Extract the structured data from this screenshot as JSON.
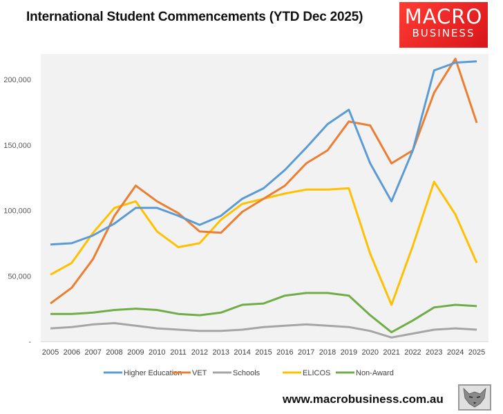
{
  "header": {
    "title": "International Student Commencements (YTD Dec 2025)",
    "logo_line1": "MACRO",
    "logo_line2": "BUSINESS"
  },
  "footer": {
    "url": "www.macrobusiness.com.au"
  },
  "chart_data": {
    "type": "line",
    "title": "International Student Commencements (YTD Dec 2025)",
    "xlabel": "",
    "ylabel": "",
    "ylim": [
      0,
      225000
    ],
    "yticks": [
      0,
      50000,
      100000,
      150000,
      200000
    ],
    "ytick_labels": [
      "-",
      "50,000",
      "100,000",
      "150,000",
      "200,000"
    ],
    "grid": false,
    "legend_position": "bottom",
    "categories": [
      "2005",
      "2006",
      "2007",
      "2008",
      "2009",
      "2010",
      "2011",
      "2012",
      "2013",
      "2014",
      "2015",
      "2016",
      "2017",
      "2018",
      "2019",
      "2020",
      "2021",
      "2022",
      "2023",
      "2024",
      "2025"
    ],
    "series": [
      {
        "name": "Higher Education",
        "color": "#5b9bd5",
        "values": [
          74000,
          75000,
          81000,
          90000,
          102000,
          102000,
          96000,
          89000,
          96000,
          109000,
          117000,
          131000,
          148000,
          166000,
          177000,
          136000,
          107000,
          146000,
          207000,
          213000,
          214000
        ]
      },
      {
        "name": "VET",
        "color": "#ed7d31",
        "values": [
          29000,
          41000,
          63000,
          96000,
          119000,
          107000,
          98000,
          84000,
          83000,
          99000,
          109000,
          119000,
          136000,
          146000,
          168000,
          165000,
          136000,
          146000,
          190000,
          216000,
          167000
        ]
      },
      {
        "name": "Schools",
        "color": "#a5a5a5",
        "values": [
          10000,
          11000,
          13000,
          14000,
          12000,
          10000,
          9000,
          8000,
          8000,
          9000,
          11000,
          12000,
          13000,
          12000,
          11000,
          8000,
          3000,
          6000,
          9000,
          10000,
          9000
        ]
      },
      {
        "name": "ELICOS",
        "color": "#ffc000",
        "values": [
          51000,
          60000,
          83000,
          102000,
          107000,
          84000,
          72000,
          75000,
          93000,
          105000,
          109000,
          113000,
          116000,
          116000,
          117000,
          67000,
          28000,
          73000,
          122000,
          97000,
          60000
        ]
      },
      {
        "name": "Non-Award",
        "color": "#70ad47",
        "values": [
          21000,
          21000,
          22000,
          24000,
          25000,
          24000,
          21000,
          20000,
          22000,
          28000,
          29000,
          35000,
          37000,
          37000,
          35000,
          20000,
          7000,
          16000,
          26000,
          28000,
          27000
        ]
      }
    ]
  }
}
